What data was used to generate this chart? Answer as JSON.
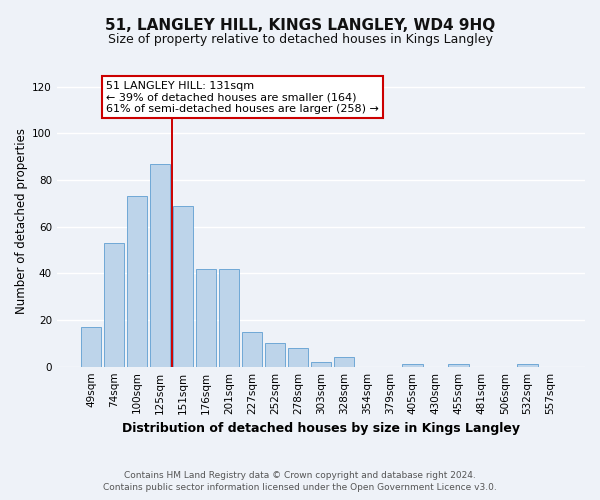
{
  "title": "51, LANGLEY HILL, KINGS LANGLEY, WD4 9HQ",
  "subtitle": "Size of property relative to detached houses in Kings Langley",
  "xlabel": "Distribution of detached houses by size in Kings Langley",
  "ylabel": "Number of detached properties",
  "bar_labels": [
    "49sqm",
    "74sqm",
    "100sqm",
    "125sqm",
    "151sqm",
    "176sqm",
    "201sqm",
    "227sqm",
    "252sqm",
    "278sqm",
    "303sqm",
    "328sqm",
    "354sqm",
    "379sqm",
    "405sqm",
    "430sqm",
    "455sqm",
    "481sqm",
    "506sqm",
    "532sqm",
    "557sqm"
  ],
  "bar_values": [
    17,
    53,
    73,
    87,
    69,
    42,
    42,
    15,
    10,
    8,
    2,
    4,
    0,
    0,
    1,
    0,
    1,
    0,
    0,
    1,
    0
  ],
  "bar_color": "#bdd4ea",
  "bar_edge_color": "#6fa8d6",
  "vline_x_bar_index": 3,
  "vline_color": "#cc0000",
  "ylim": [
    0,
    125
  ],
  "yticks": [
    0,
    20,
    40,
    60,
    80,
    100,
    120
  ],
  "annotation_title": "51 LANGLEY HILL: 131sqm",
  "annotation_line1": "← 39% of detached houses are smaller (164)",
  "annotation_line2": "61% of semi-detached houses are larger (258) →",
  "annotation_box_color": "#ffffff",
  "annotation_box_edge": "#cc0000",
  "footer_line1": "Contains HM Land Registry data © Crown copyright and database right 2024.",
  "footer_line2": "Contains public sector information licensed under the Open Government Licence v3.0.",
  "background_color": "#eef2f8",
  "grid_color": "#ffffff",
  "title_fontsize": 11,
  "subtitle_fontsize": 9,
  "xlabel_fontsize": 9,
  "ylabel_fontsize": 8.5,
  "tick_fontsize": 7.5,
  "footer_fontsize": 6.5
}
